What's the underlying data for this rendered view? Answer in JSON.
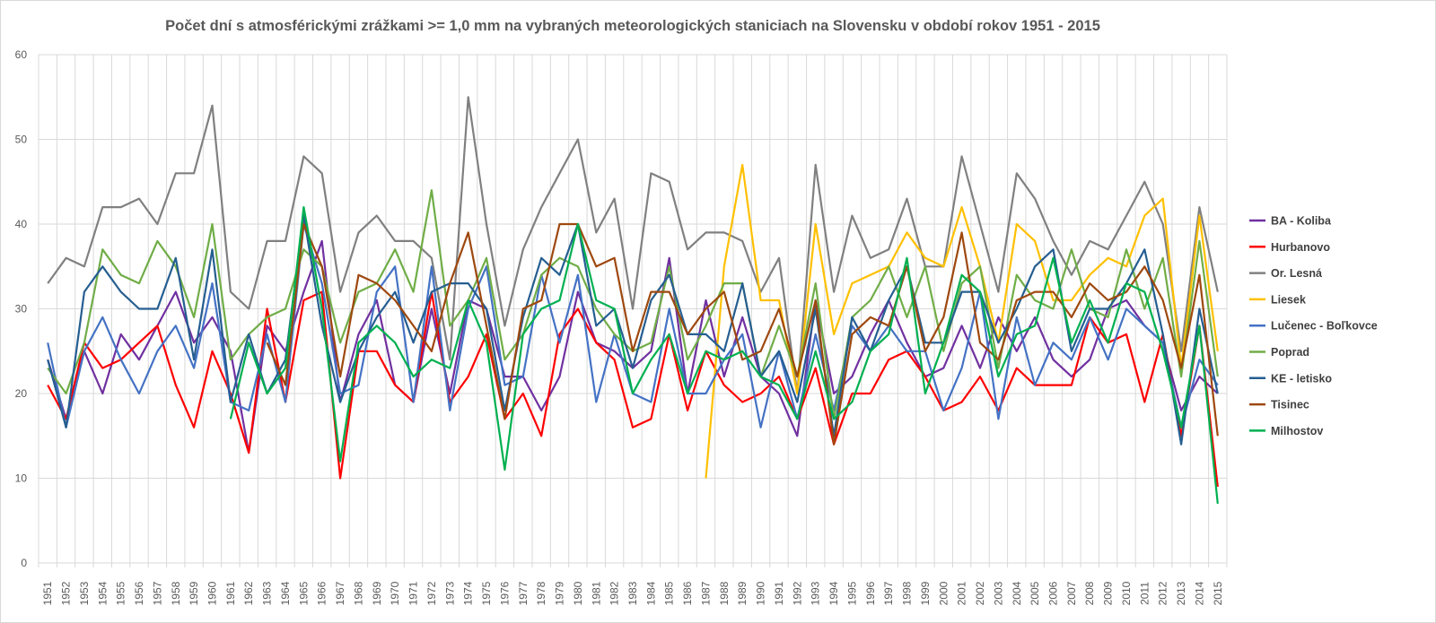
{
  "chart_data": {
    "type": "line",
    "title": "Počet dní s atmosférickými zrážkami >= 1,0 mm na vybraných meteorologických staniciach na Slovensku v období rokov 1951 - 2015",
    "xlabel": "",
    "ylabel": "",
    "ylim": [
      0,
      60
    ],
    "yticks": [
      0,
      10,
      20,
      30,
      40,
      50,
      60
    ],
    "grid": true,
    "legend_position": "right",
    "x": [
      1951,
      1952,
      1953,
      1954,
      1955,
      1956,
      1957,
      1958,
      1959,
      1960,
      1961,
      1962,
      1963,
      1964,
      1965,
      1966,
      1967,
      1968,
      1969,
      1970,
      1971,
      1972,
      1973,
      1974,
      1975,
      1976,
      1977,
      1978,
      1979,
      1980,
      1981,
      1982,
      1983,
      1984,
      1985,
      1986,
      1987,
      1988,
      1989,
      1990,
      1991,
      1992,
      1993,
      1994,
      1995,
      1996,
      1997,
      1998,
      1999,
      2000,
      2001,
      2002,
      2003,
      2004,
      2005,
      2006,
      2007,
      2008,
      2009,
      2010,
      2011,
      2012,
      2013,
      2014,
      2015
    ],
    "series": [
      {
        "name": "BA - Koliba",
        "color": "#7030a0",
        "values": [
          24,
          17,
          25,
          20,
          27,
          24,
          28,
          32,
          26,
          29,
          25,
          13,
          28,
          25,
          32,
          38,
          19,
          27,
          31,
          21,
          19,
          30,
          20,
          31,
          30,
          22,
          22,
          18,
          22,
          32,
          26,
          25,
          23,
          25,
          36,
          20,
          31,
          22,
          29,
          22,
          20,
          15,
          31,
          20,
          22,
          27,
          31,
          26,
          22,
          23,
          28,
          23,
          29,
          25,
          29,
          24,
          22,
          24,
          30,
          31,
          28,
          26,
          18,
          22,
          20
        ]
      },
      {
        "name": "Hurbanovo",
        "color": "#ff0000",
        "values": [
          21,
          17,
          26,
          23,
          24,
          26,
          28,
          21,
          16,
          25,
          20,
          13,
          30,
          19,
          31,
          32,
          10,
          25,
          25,
          21,
          19,
          32,
          19,
          22,
          27,
          17,
          20,
          15,
          27,
          30,
          26,
          24,
          16,
          17,
          27,
          18,
          25,
          21,
          19,
          20,
          22,
          17,
          23,
          14,
          20,
          20,
          24,
          25,
          22,
          18,
          19,
          22,
          18,
          23,
          21,
          21,
          21,
          29,
          26,
          27,
          19,
          27,
          15,
          28,
          9
        ]
      },
      {
        "name": "Or. Lesná",
        "color": "#808080",
        "values": [
          33,
          36,
          35,
          42,
          42,
          43,
          40,
          46,
          46,
          54,
          32,
          30,
          38,
          38,
          48,
          46,
          32,
          39,
          41,
          38,
          38,
          36,
          24,
          55,
          40,
          28,
          37,
          42,
          46,
          50,
          39,
          43,
          30,
          46,
          45,
          37,
          39,
          39,
          38,
          32,
          36,
          20,
          47,
          32,
          41,
          36,
          37,
          43,
          35,
          35,
          48,
          40,
          32,
          46,
          43,
          38,
          34,
          38,
          37,
          41,
          45,
          40,
          25,
          42,
          32
        ]
      },
      {
        "name": "Liesek",
        "color": "#ffc000",
        "values": [
          null,
          null,
          null,
          null,
          null,
          null,
          null,
          null,
          null,
          null,
          null,
          null,
          null,
          null,
          null,
          null,
          null,
          null,
          null,
          null,
          null,
          null,
          null,
          null,
          null,
          null,
          null,
          null,
          null,
          null,
          null,
          null,
          null,
          null,
          null,
          null,
          10,
          35,
          47,
          31,
          31,
          20,
          40,
          27,
          33,
          34,
          35,
          39,
          36,
          35,
          42,
          35,
          26,
          40,
          38,
          31,
          31,
          34,
          36,
          35,
          41,
          43,
          23,
          41,
          25
        ]
      },
      {
        "name": "Lučenec - Boľkovce",
        "color": "#4472c4",
        "values": [
          26,
          16,
          25,
          29,
          24,
          20,
          25,
          28,
          23,
          33,
          19,
          18,
          27,
          19,
          40,
          33,
          20,
          21,
          32,
          35,
          19,
          35,
          18,
          30,
          35,
          21,
          22,
          34,
          26,
          34,
          19,
          27,
          20,
          19,
          30,
          20,
          20,
          24,
          27,
          16,
          25,
          17,
          27,
          18,
          28,
          25,
          28,
          25,
          25,
          18,
          23,
          32,
          17,
          29,
          21,
          26,
          24,
          29,
          24,
          30,
          28,
          26,
          16,
          24,
          21
        ]
      },
      {
        "name": "Poprad",
        "color": "#70ad47",
        "values": [
          23,
          20,
          26,
          37,
          34,
          33,
          38,
          35,
          29,
          40,
          24,
          27,
          29,
          30,
          37,
          35,
          26,
          32,
          33,
          37,
          32,
          44,
          28,
          31,
          36,
          24,
          27,
          34,
          36,
          35,
          30,
          27,
          25,
          26,
          35,
          24,
          28,
          33,
          33,
          22,
          28,
          22,
          33,
          17,
          29,
          31,
          35,
          29,
          35,
          25,
          33,
          35,
          23,
          34,
          31,
          30,
          37,
          30,
          29,
          37,
          30,
          36,
          22,
          38,
          22
        ]
      },
      {
        "name": "KE - letisko",
        "color": "#255e91",
        "values": [
          24,
          16,
          32,
          35,
          32,
          30,
          30,
          36,
          24,
          37,
          19,
          27,
          20,
          24,
          41,
          28,
          19,
          25,
          29,
          32,
          26,
          32,
          33,
          33,
          30,
          18,
          29,
          36,
          34,
          40,
          28,
          30,
          23,
          31,
          34,
          27,
          27,
          25,
          33,
          22,
          25,
          19,
          30,
          15,
          29,
          25,
          31,
          35,
          26,
          26,
          32,
          32,
          26,
          30,
          35,
          37,
          25,
          30,
          30,
          33,
          37,
          27,
          14,
          30,
          20
        ]
      },
      {
        "name": "Tisinec",
        "color": "#9e480e",
        "values": [
          null,
          null,
          null,
          null,
          null,
          null,
          null,
          null,
          null,
          null,
          null,
          null,
          26,
          21,
          40,
          35,
          22,
          34,
          33,
          31,
          28,
          25,
          33,
          39,
          28,
          17,
          30,
          31,
          40,
          40,
          35,
          36,
          25,
          32,
          32,
          27,
          30,
          32,
          24,
          25,
          30,
          22,
          31,
          14,
          27,
          29,
          28,
          35,
          25,
          29,
          39,
          26,
          24,
          31,
          32,
          32,
          29,
          33,
          31,
          32,
          35,
          31,
          23,
          34,
          15
        ]
      },
      {
        "name": "Milhostov",
        "color": "#00b050",
        "values": [
          null,
          null,
          null,
          null,
          null,
          null,
          null,
          null,
          null,
          null,
          17,
          26,
          20,
          23,
          42,
          30,
          12,
          26,
          28,
          26,
          22,
          24,
          23,
          31,
          26,
          11,
          27,
          30,
          31,
          40,
          31,
          30,
          20,
          24,
          27,
          20,
          25,
          24,
          25,
          22,
          21,
          17,
          25,
          17,
          19,
          25,
          27,
          36,
          20,
          26,
          34,
          32,
          22,
          27,
          28,
          36,
          26,
          31,
          26,
          33,
          32,
          25,
          16,
          28,
          7
        ]
      }
    ]
  }
}
